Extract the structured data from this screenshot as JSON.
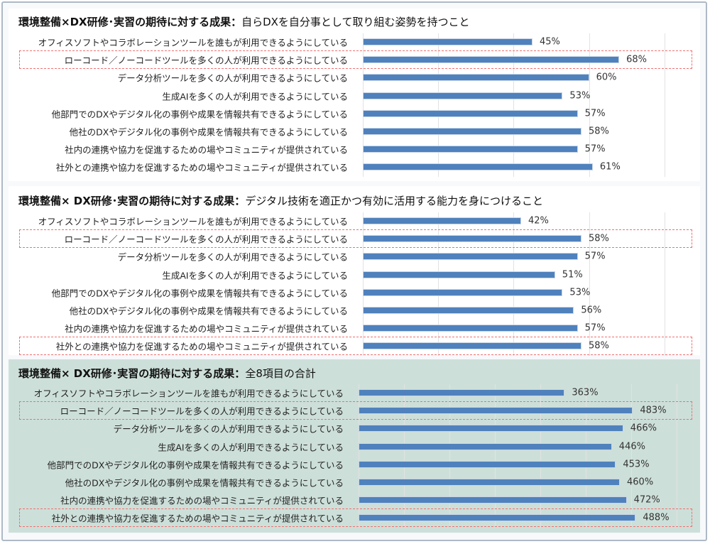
{
  "chart_data": [
    {
      "type": "bar",
      "orientation": "horizontal",
      "title_bold": "環境整備×DX研修･実習の期待に対する成果：",
      "title_rest": "自らDXを自分事として取り組む姿勢を持つこと",
      "categories": [
        "オフィスソフトやコラボレーションツールを誰もが利用できるようにしている",
        "ローコード／ノーコードツールを多くの人が利用できるようにしている",
        "データ分析ツールを多くの人が利用できるようにしている",
        "生成AIを多くの人が利用できるようにしている",
        "他部門でのDXやデジタル化の事例や成果を情報共有できるようにしている",
        "他社のDXやデジタル化の事例や成果を情報共有できるようにしている",
        "社内の連携や協力を促進するための場やコミュニティが提供されている",
        "社外との連携や協力を促進するための場やコミュニティが提供されている"
      ],
      "values": [
        45,
        68,
        60,
        53,
        57,
        58,
        57,
        61
      ],
      "labels": [
        "45%",
        "68%",
        "60%",
        "53%",
        "57%",
        "58%",
        "57%",
        "61%"
      ],
      "highlighted": [
        1
      ],
      "xlim": [
        0,
        85
      ],
      "grid_step": 20
    },
    {
      "type": "bar",
      "orientation": "horizontal",
      "title_bold": "環境整備× DX研修･実習の期待に対する成果：",
      "title_rest": "デジタル技術を適正かつ有効に活用する能力を身につけること",
      "categories": [
        "オフィスソフトやコラボレーションツールを誰もが利用できるようにしている",
        "ローコード／ノーコードツールを多くの人が利用できるようにしている",
        "データ分析ツールを多くの人が利用できるようにしている",
        "生成AIを多くの人が利用できるようにしている",
        "他部門でのDXやデジタル化の事例や成果を情報共有できるようにしている",
        "他社のDXやデジタル化の事例や成果を情報共有できるようにしている",
        "社内の連携や協力を促進するための場やコミュニティが提供されている",
        "社外との連携や協力を促進するための場やコミュニティが提供されている"
      ],
      "values": [
        42,
        58,
        57,
        51,
        53,
        56,
        57,
        58
      ],
      "labels": [
        "42%",
        "58%",
        "57%",
        "51%",
        "53%",
        "56%",
        "57%",
        "58%"
      ],
      "highlighted": [
        1,
        7
      ],
      "xlim": [
        0,
        85
      ],
      "grid_step": 20
    },
    {
      "type": "bar",
      "orientation": "horizontal",
      "title_bold": "環境整備× DX研修･実習の期待に対する成果：",
      "title_rest": "全8項目の合計",
      "categories": [
        "オフィスソフトやコラボレーションツールを誰もが利用できるようにしている",
        "ローコード／ノーコードツールを多くの人が利用できるようにしている",
        "データ分析ツールを多くの人が利用できるようにしている",
        "生成AIを多くの人が利用できるようにしている",
        "他部門でのDXやデジタル化の事例や成果を情報共有できるようにしている",
        "他社のDXやデジタル化の事例や成果を情報共有できるようにしている",
        "社内の連携や協力を促進するための場やコミュニティが提供されている",
        "社外との連携や協力を促進するための場やコミュニティが提供されている"
      ],
      "values": [
        363,
        483,
        466,
        446,
        453,
        460,
        472,
        488
      ],
      "labels": [
        "363%",
        "483%",
        "466%",
        "446%",
        "453%",
        "460%",
        "472%",
        "488%"
      ],
      "highlighted": [
        1,
        7
      ],
      "xlim": [
        0,
        560
      ],
      "grid_step": 80
    }
  ],
  "colors": {
    "bar": "#4f81bd",
    "highlight": "#f07070",
    "summary_bg": "#cddfd9"
  }
}
